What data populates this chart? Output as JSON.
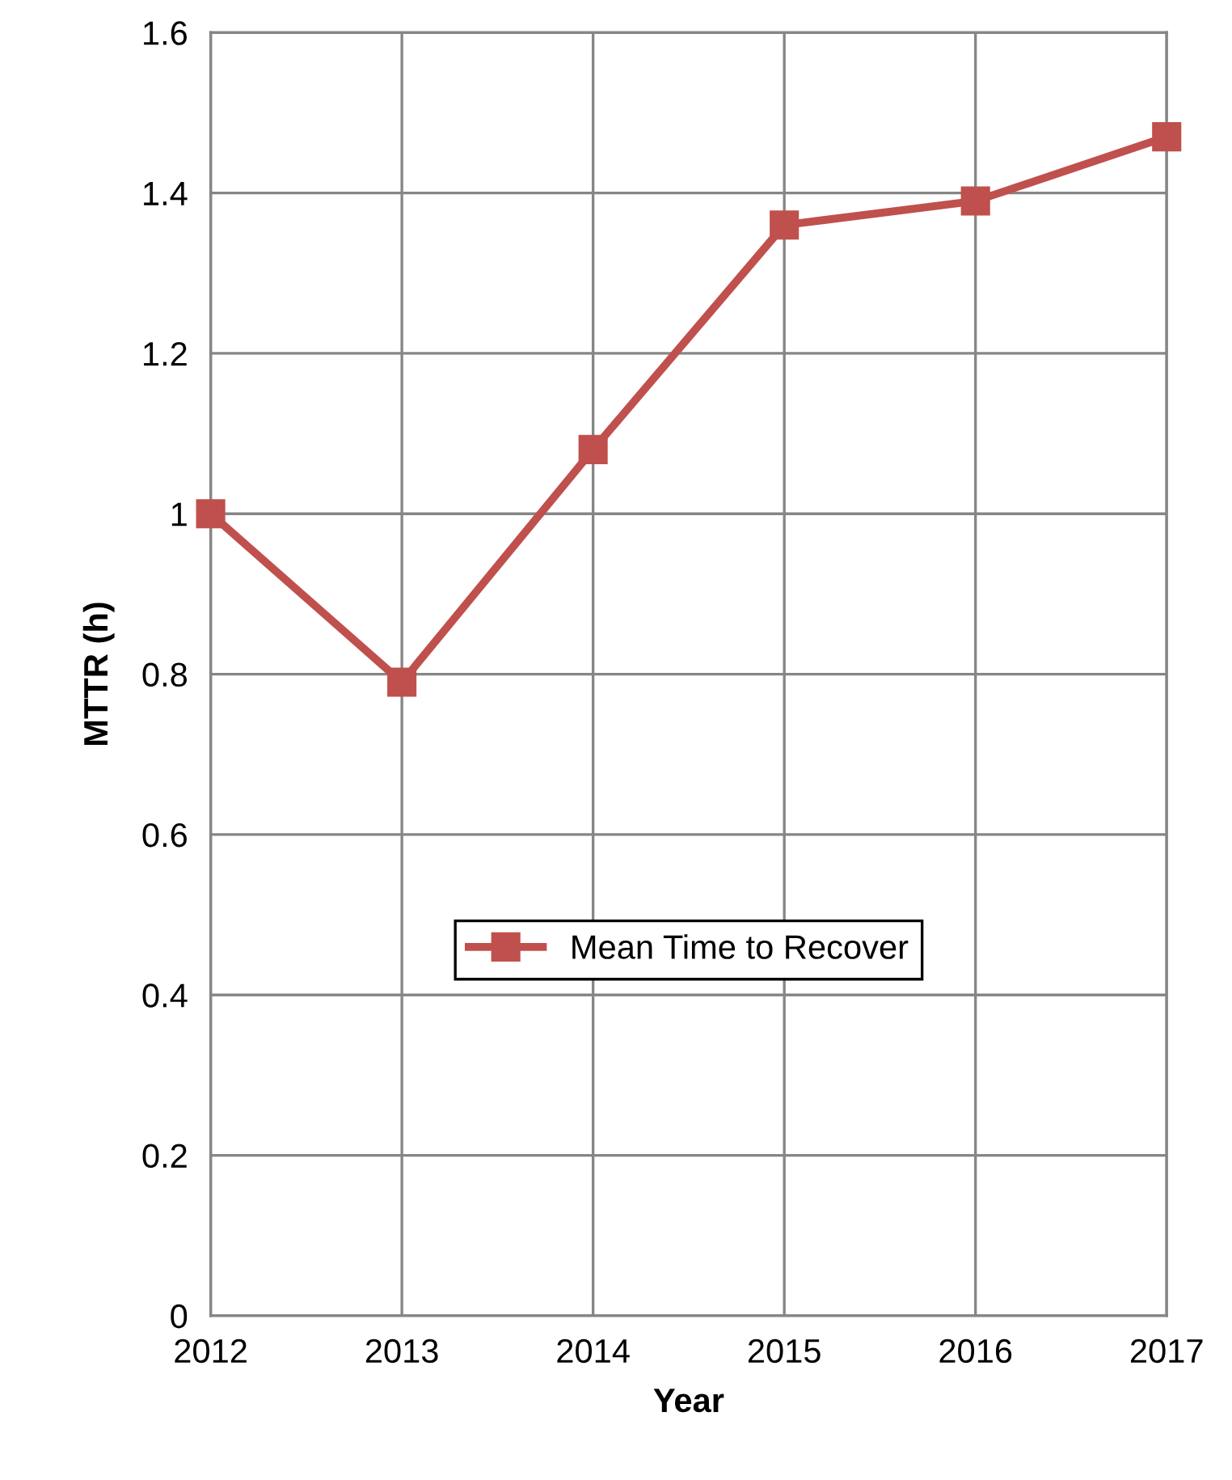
{
  "chart_data": {
    "type": "line",
    "xlabel": "Year",
    "ylabel": "MTTR (h)",
    "x": [
      2012,
      2013,
      2014,
      2015,
      2016,
      2017
    ],
    "series": [
      {
        "name": "Mean Time to Recover",
        "color": "#c0504d",
        "values": [
          1.0,
          0.79,
          1.08,
          1.36,
          1.39,
          1.47
        ]
      }
    ],
    "xlim": [
      2012,
      2017
    ],
    "xticks": [
      2012,
      2013,
      2014,
      2015,
      2016,
      2017
    ],
    "ylim": [
      0,
      1.6
    ],
    "yticks": [
      0,
      0.2,
      0.4,
      0.6,
      0.8,
      1,
      1.2,
      1.4,
      1.6
    ],
    "grid": true,
    "legend": "center",
    "marker": "square",
    "line_style": "solid"
  }
}
